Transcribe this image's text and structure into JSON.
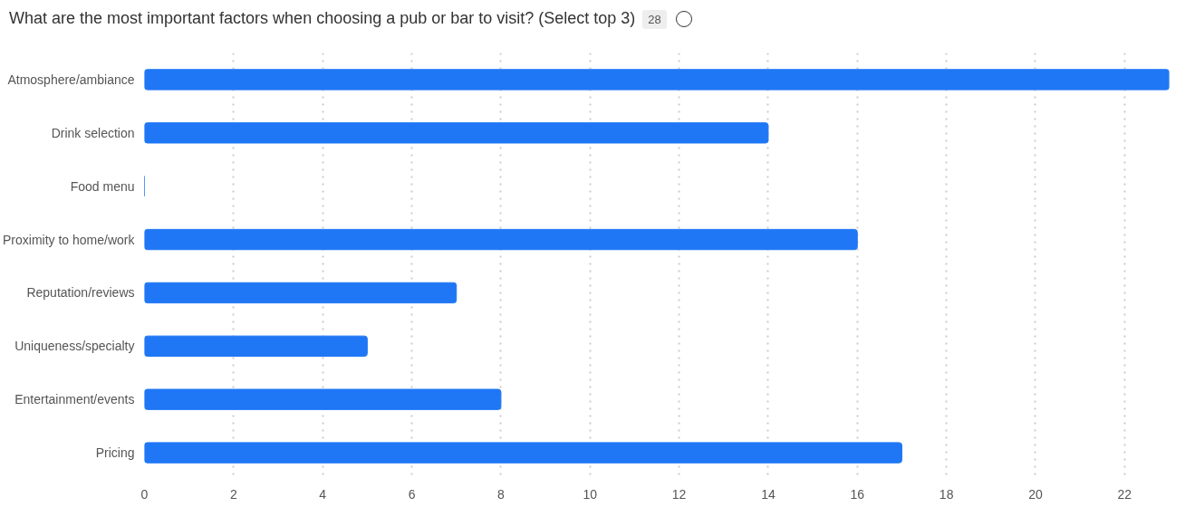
{
  "chart_data": {
    "type": "bar",
    "orientation": "horizontal",
    "title": "What are the most important factors when choosing a pub or bar to visit? (Select top 3)",
    "annotations": [
      "28"
    ],
    "categories": [
      "Atmosphere/ambiance",
      "Drink selection",
      "Food menu",
      "Proximity to home/work",
      "Reputation/reviews",
      "Uniqueness/specialty",
      "Entertainment/events",
      "Pricing"
    ],
    "values": [
      23,
      14,
      0,
      16,
      7,
      5,
      8,
      17
    ],
    "color": "#1f77f5",
    "xlim": [
      0,
      23
    ],
    "xticks": [
      0,
      2,
      4,
      6,
      8,
      10,
      12,
      14,
      16,
      18,
      20,
      22
    ],
    "grid": "x"
  }
}
